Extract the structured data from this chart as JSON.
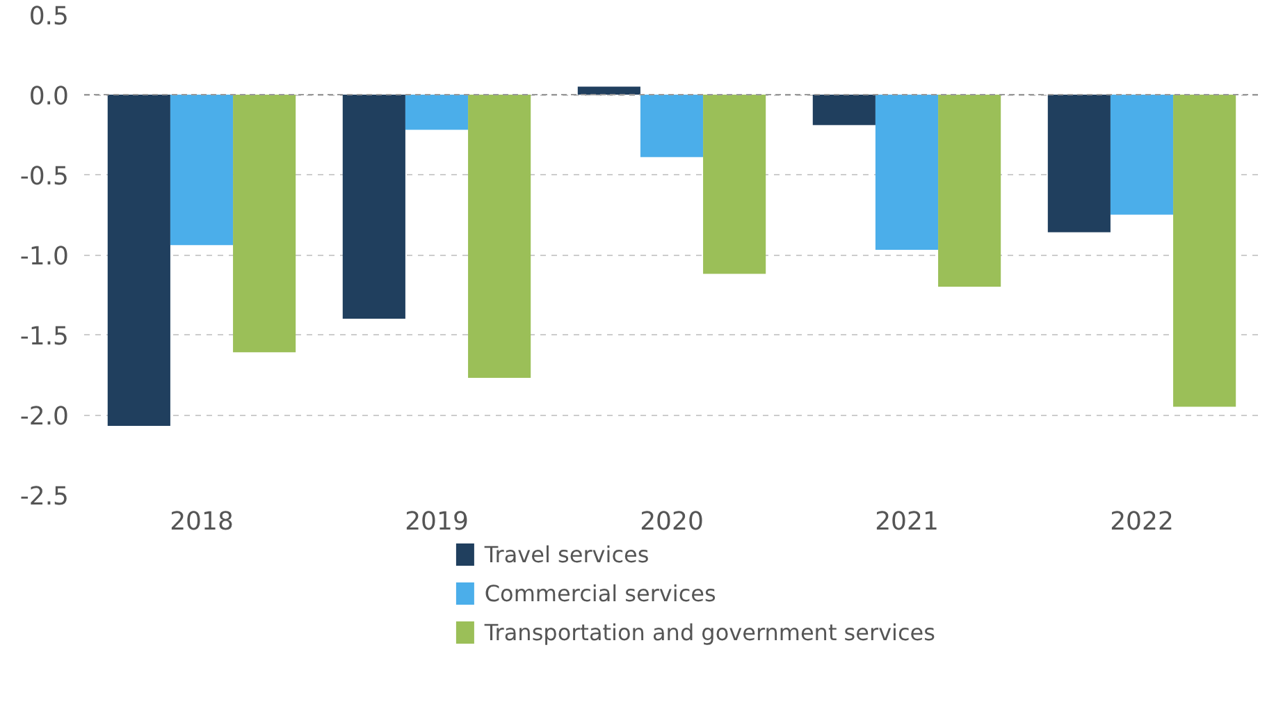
{
  "chart_data": {
    "type": "bar",
    "categories": [
      "2018",
      "2019",
      "2020",
      "2021",
      "2022"
    ],
    "series": [
      {
        "name": "Travel services",
        "color": "#203f5e",
        "values": [
          -2.07,
          -1.4,
          0.05,
          -0.19,
          -0.86
        ]
      },
      {
        "name": "Commercial services",
        "color": "#4baeea",
        "values": [
          -0.94,
          -0.22,
          -0.39,
          -0.97,
          -0.75
        ]
      },
      {
        "name": "Transportation and government services",
        "color": "#9bbf58",
        "values": [
          -1.61,
          -1.77,
          -1.12,
          -1.2,
          -1.95
        ]
      }
    ],
    "ylim": [
      -2.5,
      0.5
    ],
    "yticks": [
      {
        "value": 0.5,
        "label": "0.5"
      },
      {
        "value": 0,
        "label": "0.0"
      },
      {
        "value": -0.5,
        "label": "-0.5"
      },
      {
        "value": -1,
        "label": "-1.0"
      },
      {
        "value": -1.5,
        "label": "-1.5"
      },
      {
        "value": -2,
        "label": "-2.0"
      },
      {
        "value": -2.5,
        "label": "-2.5"
      }
    ],
    "grid": "y",
    "legend": "bottom",
    "ref_lines": [
      {
        "axis": "y",
        "value": 0,
        "color": "#999999",
        "line_style": "dashed"
      }
    ]
  }
}
